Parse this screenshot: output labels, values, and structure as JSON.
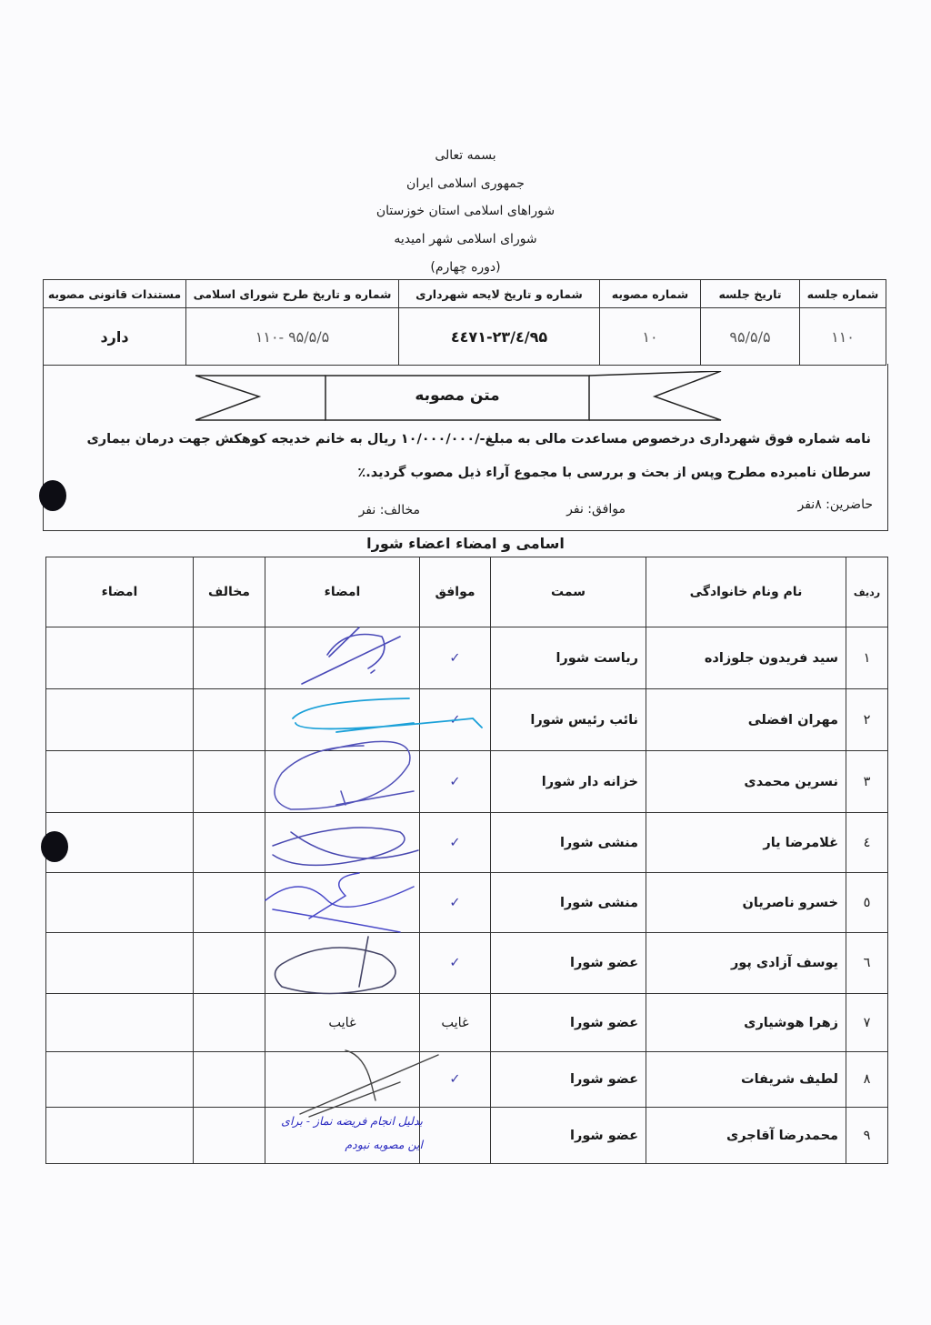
{
  "header": {
    "line1": "بسمه تعالی",
    "line2": "جمهوری اسلامی ایران",
    "line3": "شوراهای اسلامی استان خوزستان",
    "line4": "شورای اسلامی شهر امیدیه",
    "line5": "(دوره چهارم)"
  },
  "resolution_table": {
    "headers": [
      "شماره جلسه",
      "تاریخ جلسه",
      "شماره مصوبه",
      "شماره و تاریخ  لایحه شهرداری",
      "شماره و تاریخ طرح شورای اسلامی",
      "مستندات قانونی مصوبه"
    ],
    "values": [
      "۱۱۰",
      "۹۵/۵/۵",
      "۱۰",
      "۹۵/٤/۲۳-٤٤۷۱",
      "۹۵/۵/۵ -۱۱۰",
      "دارد"
    ]
  },
  "resolution": {
    "title": "متن مصوبه",
    "text_line1": "نامه شماره فوق شهرداری درخصوص مساعدت مالی به مبلغ-/۱۰/۰۰۰/۰۰۰ ریال به خانم خدیجه کوهکش جهت درمان بیماری",
    "text_line2": "سرطان نامبرده مطرح وپس از بحث و بررسی با مجموع آراء ذیل مصوب گردید.٪",
    "present": "حاضرین: ۸نفر",
    "in_favor": "موافق:  نفر",
    "against": "مخالف:  نفر"
  },
  "members": {
    "title": "اسامی و امضاء اعضاء شورا",
    "headers": [
      "ردیف",
      "نام ونام خانوادگی",
      "سمت",
      "موافق",
      "امضاء",
      "مخالف",
      "امضاء"
    ],
    "rows": [
      {
        "num": "۱",
        "name": "سید فریدون جلوزاده",
        "role": "ریاست شورا",
        "vote": "✓",
        "sign": ""
      },
      {
        "num": "۲",
        "name": "مهران افضلی",
        "role": "نائب رئیس شورا",
        "vote": "✓",
        "sign": ""
      },
      {
        "num": "۳",
        "name": "نسرین محمدی",
        "role": "خزانه دار شورا",
        "vote": "✓",
        "sign": ""
      },
      {
        "num": "٤",
        "name": "غلامرضا یار",
        "role": "منشی شورا",
        "vote": "✓",
        "sign": ""
      },
      {
        "num": "٥",
        "name": "خسرو ناصریان",
        "role": "منشی شورا",
        "vote": "✓",
        "sign": ""
      },
      {
        "num": "٦",
        "name": "یوسف آزادی پور",
        "role": "عضو شورا",
        "vote": "✓",
        "sign": ""
      },
      {
        "num": "۷",
        "name": "زهرا هوشیاری",
        "role": "عضو شورا",
        "vote": "غایب",
        "sign": "غایب"
      },
      {
        "num": "۸",
        "name": "لطیف شریفات",
        "role": "عضو شورا",
        "vote": "✓",
        "sign": ""
      },
      {
        "num": "۹",
        "name": "محمدرضا آقاجری",
        "role": "عضو شورا",
        "vote": "",
        "sign": ""
      }
    ],
    "handwritten_note": "بدلیل انجام فریضه نماز - برای این مصوبه نبودم"
  },
  "colors": {
    "ink": "#1a1a1a",
    "pen_blue": "#3a3aa8",
    "pen_cyan": "#1aa0d8"
  }
}
